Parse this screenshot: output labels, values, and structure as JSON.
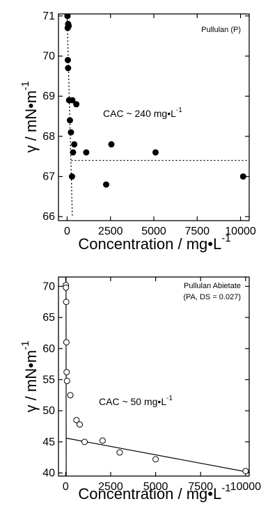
{
  "chart_data": [
    {
      "type": "scatter",
      "legend": "Pullulan (P)",
      "annotation": "CAC ~ 240 mg•L",
      "annotation_sup": "-1",
      "ylabel": "γ / mN•m",
      "ylabel_sup": "-1",
      "xlabel": "Concentration / mg•L",
      "xlabel_sup": "-1",
      "xlim": [
        -500,
        10500
      ],
      "ylim": [
        65.9,
        71.05
      ],
      "xticks": [
        0,
        2500,
        5000,
        7500,
        10000
      ],
      "xtick_labels": [
        "0",
        "2500",
        "5000",
        "7500",
        "10000"
      ],
      "yticks": [
        66,
        67,
        68,
        69,
        70,
        71
      ],
      "ytick_labels": [
        "66",
        "67",
        "68",
        "69",
        "70",
        "71"
      ],
      "marker": "filled-circle",
      "points": [
        [
          20,
          71.0
        ],
        [
          60,
          70.8
        ],
        [
          90,
          70.75
        ],
        [
          30,
          70.7
        ],
        [
          40,
          69.9
        ],
        [
          55,
          69.7
        ],
        [
          110,
          68.9
        ],
        [
          300,
          68.9
        ],
        [
          530,
          68.8
        ],
        [
          160,
          68.4
        ],
        [
          220,
          68.1
        ],
        [
          410,
          67.8
        ],
        [
          2550,
          67.8
        ],
        [
          340,
          67.6
        ],
        [
          1100,
          67.6
        ],
        [
          5100,
          67.6
        ],
        [
          10150,
          67.0
        ],
        [
          280,
          67.0
        ],
        [
          2250,
          66.8
        ]
      ],
      "fit_lines": [
        {
          "style": "dotted",
          "points": [
            [
              0,
              71.0
            ],
            [
              300,
              66.0
            ]
          ]
        },
        {
          "style": "dotted",
          "points": [
            [
              240,
              67.4
            ],
            [
              10500,
              67.4
            ]
          ]
        }
      ]
    },
    {
      "type": "scatter",
      "legend_line1": "Pullulan Abietate",
      "legend_line2": "(PA, DS = 0.027)",
      "annotation": "CAC ~ 50 mg•L",
      "annotation_sup": "-1",
      "ylabel": "γ / mN•m",
      "ylabel_sup": "-1",
      "xlabel": "Concentration / mg•L",
      "xlabel_sup": "-1",
      "xlim": [
        -400,
        10200
      ],
      "ylim": [
        39.5,
        71.5
      ],
      "xticks": [
        0,
        2500,
        5000,
        7500,
        10000
      ],
      "xtick_labels": [
        "0",
        "2500",
        "5000",
        "7500",
        "10000"
      ],
      "yticks": [
        40,
        45,
        50,
        55,
        60,
        65,
        70
      ],
      "ytick_labels": [
        "40",
        "45",
        "50",
        "55",
        "60",
        "65",
        "70"
      ],
      "marker": "open-circle",
      "points": [
        [
          10,
          70.2
        ],
        [
          15,
          69.8
        ],
        [
          30,
          67.5
        ],
        [
          40,
          61.0
        ],
        [
          55,
          56.2
        ],
        [
          75,
          54.8
        ],
        [
          260,
          52.5
        ],
        [
          600,
          48.5
        ],
        [
          780,
          47.8
        ],
        [
          1050,
          45.0
        ],
        [
          2050,
          45.2
        ],
        [
          3000,
          43.3
        ],
        [
          5000,
          42.2
        ],
        [
          10000,
          40.3
        ]
      ],
      "fit_lines": [
        {
          "style": "solid",
          "points": [
            [
              20,
              71.5
            ],
            [
              30,
              39.5
            ]
          ]
        },
        {
          "style": "solid",
          "points": [
            [
              30,
              45.6
            ],
            [
              10200,
              40.1
            ]
          ]
        }
      ]
    }
  ]
}
